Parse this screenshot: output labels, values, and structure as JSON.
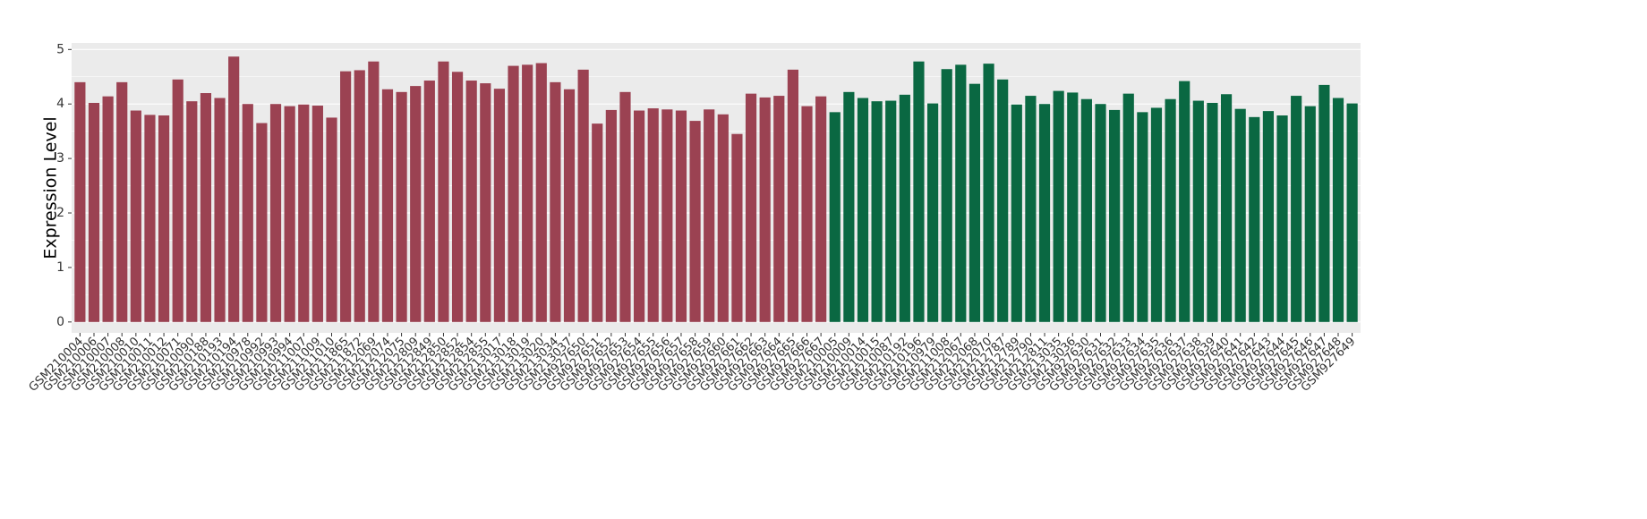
{
  "chart_data": {
    "type": "bar",
    "y_label": "Expression Level",
    "categories": [
      "GSM210004",
      "GSM210006",
      "GSM210007",
      "GSM210008",
      "GSM210010",
      "GSM210011",
      "GSM210012",
      "GSM210071",
      "GSM210090",
      "GSM210188",
      "GSM210193",
      "GSM210194",
      "GSM210978",
      "GSM210992",
      "GSM210993",
      "GSM210994",
      "GSM211007",
      "GSM211009",
      "GSM211010",
      "GSM211865",
      "GSM211872",
      "GSM212069",
      "GSM212074",
      "GSM212075",
      "GSM212809",
      "GSM212849",
      "GSM212850",
      "GSM212852",
      "GSM212854",
      "GSM212855",
      "GSM213017",
      "GSM213018",
      "GSM213019",
      "GSM213020",
      "GSM213034",
      "GSM213037",
      "GSM927650",
      "GSM927651",
      "GSM927652",
      "GSM927653",
      "GSM927654",
      "GSM927655",
      "GSM927656",
      "GSM927657",
      "GSM927658",
      "GSM927659",
      "GSM927660",
      "GSM927661",
      "GSM927662",
      "GSM927663",
      "GSM927664",
      "GSM927665",
      "GSM927666",
      "GSM927667",
      "GSM210005",
      "GSM210009",
      "GSM210014",
      "GSM210015",
      "GSM210087",
      "GSM210192",
      "GSM210196",
      "GSM210979",
      "GSM211008",
      "GSM212067",
      "GSM212068",
      "GSM212070",
      "GSM212787",
      "GSM212789",
      "GSM212790",
      "GSM212811",
      "GSM213035",
      "GSM213036",
      "GSM927630",
      "GSM927631",
      "GSM927632",
      "GSM927633",
      "GSM927634",
      "GSM927635",
      "GSM927636",
      "GSM927637",
      "GSM927638",
      "GSM927639",
      "GSM927640",
      "GSM927641",
      "GSM927642",
      "GSM927643",
      "GSM927644",
      "GSM927645",
      "GSM927646",
      "GSM927647",
      "GSM927648",
      "GSM927649"
    ],
    "series": [
      {
        "color": "#9b4252",
        "values": [
          4.4,
          4.02,
          4.14,
          4.4,
          3.88,
          3.8,
          3.79,
          4.45,
          4.05,
          4.2,
          4.11,
          4.87,
          4.0,
          3.65,
          4.0,
          3.96,
          3.99,
          3.97,
          3.75,
          4.6,
          4.62,
          4.78,
          4.27,
          4.22,
          4.33,
          4.43,
          4.78,
          4.59,
          4.43,
          4.38,
          4.28,
          4.7,
          4.72,
          4.75,
          4.4,
          4.27,
          4.63,
          3.64,
          3.89,
          4.22,
          3.88,
          3.92,
          3.9,
          3.88,
          3.69,
          3.9,
          3.81,
          3.45,
          4.19,
          4.12,
          4.15,
          4.63,
          3.96,
          4.14,
          null,
          null,
          null,
          null,
          null,
          null,
          null,
          null,
          null,
          null,
          null,
          null,
          null,
          null,
          null,
          null,
          null,
          null,
          null,
          null,
          null,
          null,
          null,
          null,
          null,
          null,
          null,
          null,
          null,
          null,
          null,
          null,
          null,
          null,
          null,
          null,
          null,
          null
        ]
      },
      {
        "color": "#0a6842",
        "values": [
          null,
          null,
          null,
          null,
          null,
          null,
          null,
          null,
          null,
          null,
          null,
          null,
          null,
          null,
          null,
          null,
          null,
          null,
          null,
          null,
          null,
          null,
          null,
          null,
          null,
          null,
          null,
          null,
          null,
          null,
          null,
          null,
          null,
          null,
          null,
          null,
          null,
          null,
          null,
          null,
          null,
          null,
          null,
          null,
          null,
          null,
          null,
          null,
          null,
          null,
          null,
          null,
          null,
          null,
          3.85,
          4.22,
          4.11,
          4.05,
          4.06,
          4.17,
          4.78,
          4.01,
          4.64,
          4.72,
          4.37,
          4.74,
          4.45,
          3.99,
          4.15,
          4.0,
          4.24,
          4.21,
          4.09,
          4.0,
          3.89,
          4.19,
          3.85,
          3.93,
          4.09,
          4.42,
          4.06,
          4.02,
          4.18,
          3.91,
          3.76,
          3.87,
          3.79,
          4.15,
          3.96,
          4.35,
          4.11,
          4.01
        ]
      }
    ],
    "ylim": [
      -0.2,
      5.12
    ],
    "yticks": [
      0,
      1,
      2,
      3,
      4,
      5
    ],
    "grid": true
  }
}
